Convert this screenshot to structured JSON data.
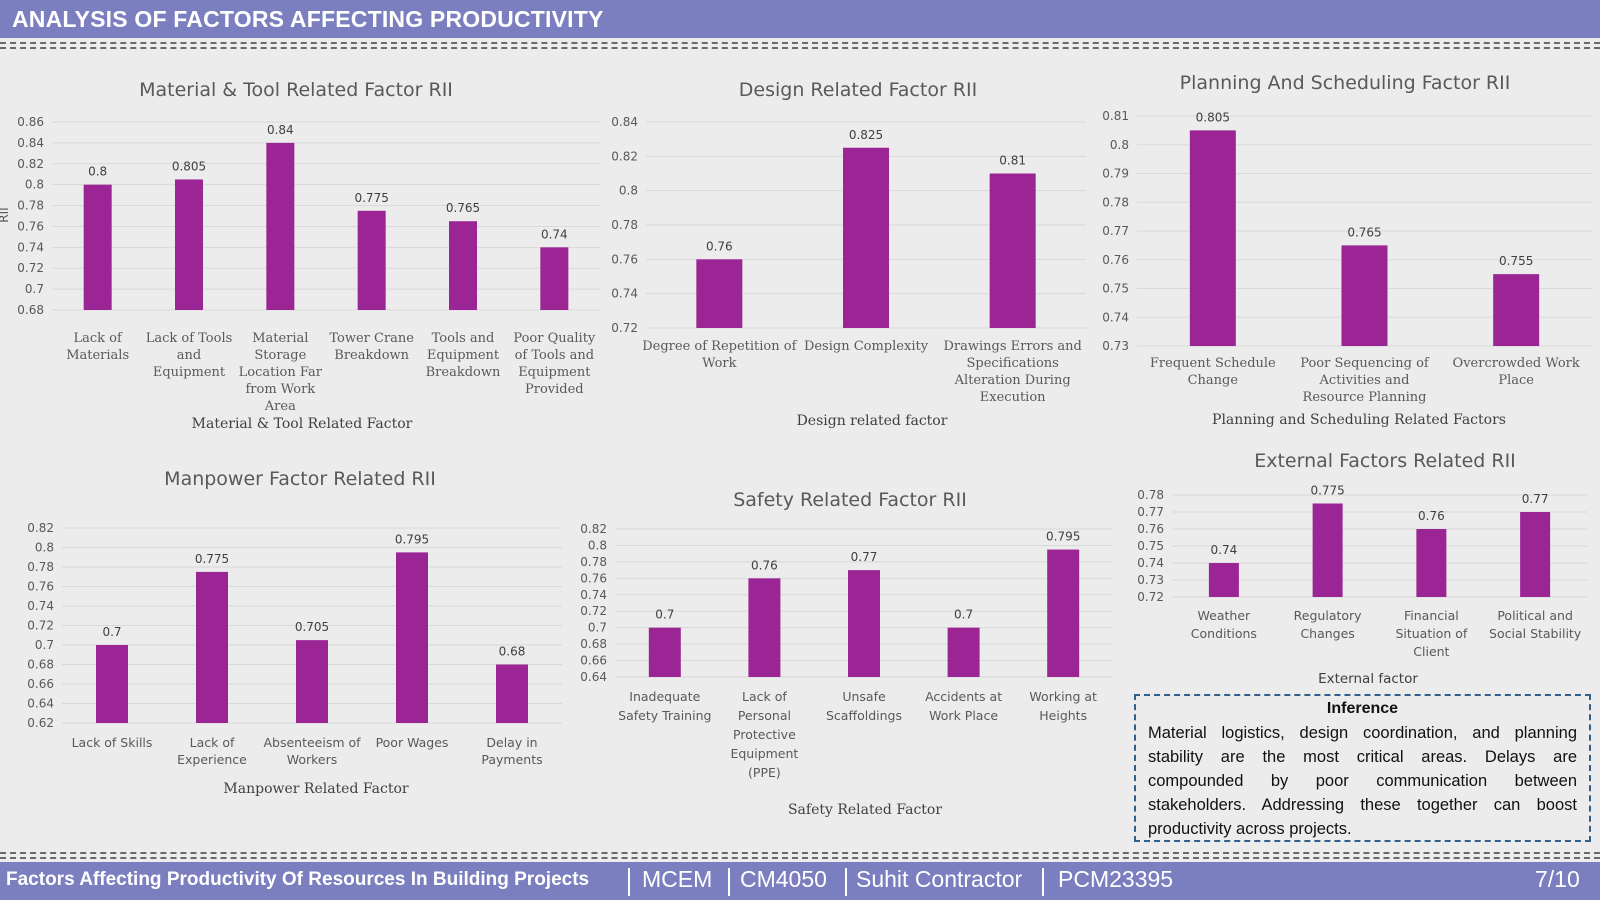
{
  "header": {
    "title": "ANALYSIS OF FACTORS AFFECTING PRODUCTIVITY"
  },
  "inference": {
    "heading": "Inference",
    "text": "Material logistics, design coordination, and planning stability are the most critical areas. Delays are compounded by poor communication between stakeholders. Addressing these together can boost productivity across projects."
  },
  "footer": {
    "project_title": "Factors Affecting Productivity Of Resources In Building Projects",
    "course": "MCEM",
    "code": "CM4050",
    "company": "Suhit Contractor",
    "id": "PCM23395",
    "page": "7/10"
  },
  "chart_data": [
    {
      "type": "bar",
      "title": "Material & Tool Related Factor RII",
      "xlabel": "Material & Tool Related Factor",
      "ylabel": "RII",
      "ylim": [
        0.68,
        0.86
      ],
      "yticks": [
        "0.68",
        "0.7",
        "0.72",
        "0.74",
        "0.76",
        "0.78",
        "0.8",
        "0.82",
        "0.84",
        "0.86"
      ],
      "categories": [
        [
          "Lack of",
          "Materials"
        ],
        [
          "Lack of Tools",
          "and",
          "Equipment"
        ],
        [
          "Material",
          "Storage",
          "Location Far",
          "from Work",
          "Area"
        ],
        [
          "Tower Crane",
          "Breakdown"
        ],
        [
          "Tools and",
          "Equipment",
          "Breakdown"
        ],
        [
          "Poor Quality",
          "of Tools and",
          "Equipment",
          "Provided"
        ]
      ],
      "values": [
        0.8,
        0.805,
        0.84,
        0.775,
        0.765,
        0.74
      ],
      "value_labels": [
        "0.8",
        "0.805",
        "0.84",
        "0.775",
        "0.765",
        "0.74"
      ],
      "grid": true
    },
    {
      "type": "bar",
      "title": "Design Related Factor RII",
      "xlabel": "Design related factor",
      "ylabel": "",
      "ylim": [
        0.72,
        0.84
      ],
      "yticks": [
        "0.72",
        "0.74",
        "0.76",
        "0.78",
        "0.8",
        "0.82",
        "0.84"
      ],
      "categories": [
        [
          "Degree of Repetition of",
          "Work"
        ],
        [
          "Design Complexity"
        ],
        [
          "Drawings Errors and",
          "Specifications",
          "Alteration During",
          "Execution"
        ]
      ],
      "values": [
        0.76,
        0.825,
        0.81
      ],
      "value_labels": [
        "0.76",
        "0.825",
        "0.81"
      ],
      "grid": true
    },
    {
      "type": "bar",
      "title": "Planning And Scheduling Factor RII",
      "xlabel": "Planning and Scheduling Related Factors",
      "ylabel": "",
      "ylim": [
        0.73,
        0.81
      ],
      "yticks": [
        "0.73",
        "0.74",
        "0.75",
        "0.76",
        "0.77",
        "0.78",
        "0.79",
        "0.8",
        "0.81"
      ],
      "categories": [
        [
          "Frequent Schedule",
          "Change"
        ],
        [
          "Poor Sequencing of",
          "Activities and",
          "Resource Planning"
        ],
        [
          "Overcrowded Work",
          "Place"
        ]
      ],
      "values": [
        0.805,
        0.765,
        0.755
      ],
      "value_labels": [
        "0.805",
        "0.765",
        "0.755"
      ],
      "grid": true
    },
    {
      "type": "bar",
      "title": "Manpower Factor Related RII",
      "xlabel": "Manpower Related Factor",
      "ylabel": "",
      "ylim": [
        0.62,
        0.82
      ],
      "yticks": [
        "0.62",
        "0.64",
        "0.66",
        "0.68",
        "0.7",
        "0.72",
        "0.74",
        "0.76",
        "0.78",
        "0.8",
        "0.82"
      ],
      "categories": [
        [
          "Lack of Skills"
        ],
        [
          "Lack of",
          "Experience"
        ],
        [
          "Absenteeism of",
          "Workers"
        ],
        [
          "Poor Wages"
        ],
        [
          "Delay in",
          "Payments"
        ]
      ],
      "values": [
        0.7,
        0.775,
        0.705,
        0.795,
        0.68
      ],
      "value_labels": [
        "0.7",
        "0.775",
        "0.705",
        "0.795",
        "0.68"
      ],
      "grid": true
    },
    {
      "type": "bar",
      "title": "Safety Related Factor RII",
      "xlabel": "Safety Related Factor",
      "ylabel": "",
      "ylim": [
        0.64,
        0.82
      ],
      "yticks": [
        "0.64",
        "0.66",
        "0.68",
        "0.7",
        "0.72",
        "0.74",
        "0.76",
        "0.78",
        "0.8",
        "0.82"
      ],
      "categories": [
        [
          "Inadequate",
          "Safety Training"
        ],
        [
          "Lack of",
          "Personal",
          "Protective",
          "Equipment",
          "(PPE)"
        ],
        [
          "Unsafe",
          "Scaffoldings"
        ],
        [
          "Accidents at",
          "Work Place"
        ],
        [
          "Working at",
          "Heights"
        ]
      ],
      "values": [
        0.7,
        0.76,
        0.77,
        0.7,
        0.795
      ],
      "value_labels": [
        "0.7",
        "0.76",
        "0.77",
        "0.7",
        "0.795"
      ],
      "grid": true
    },
    {
      "type": "bar",
      "title": "External Factors Related RII",
      "xlabel": "External factor",
      "ylabel": "",
      "ylim": [
        0.72,
        0.78
      ],
      "yticks": [
        "0.72",
        "0.73",
        "0.74",
        "0.75",
        "0.76",
        "0.77",
        "0.78"
      ],
      "categories": [
        [
          "Weather",
          "Conditions"
        ],
        [
          "Regulatory",
          "Changes"
        ],
        [
          "Financial",
          "Situation of",
          "Client"
        ],
        [
          "Political and",
          "Social Stability"
        ]
      ],
      "values": [
        0.74,
        0.775,
        0.76,
        0.77
      ],
      "value_labels": [
        "0.74",
        "0.775",
        "0.76",
        "0.77"
      ],
      "grid": true
    }
  ],
  "colors": {
    "bar": "#9b2594",
    "header": "#7b7fbf",
    "inference_border": "#2f5f8a"
  }
}
